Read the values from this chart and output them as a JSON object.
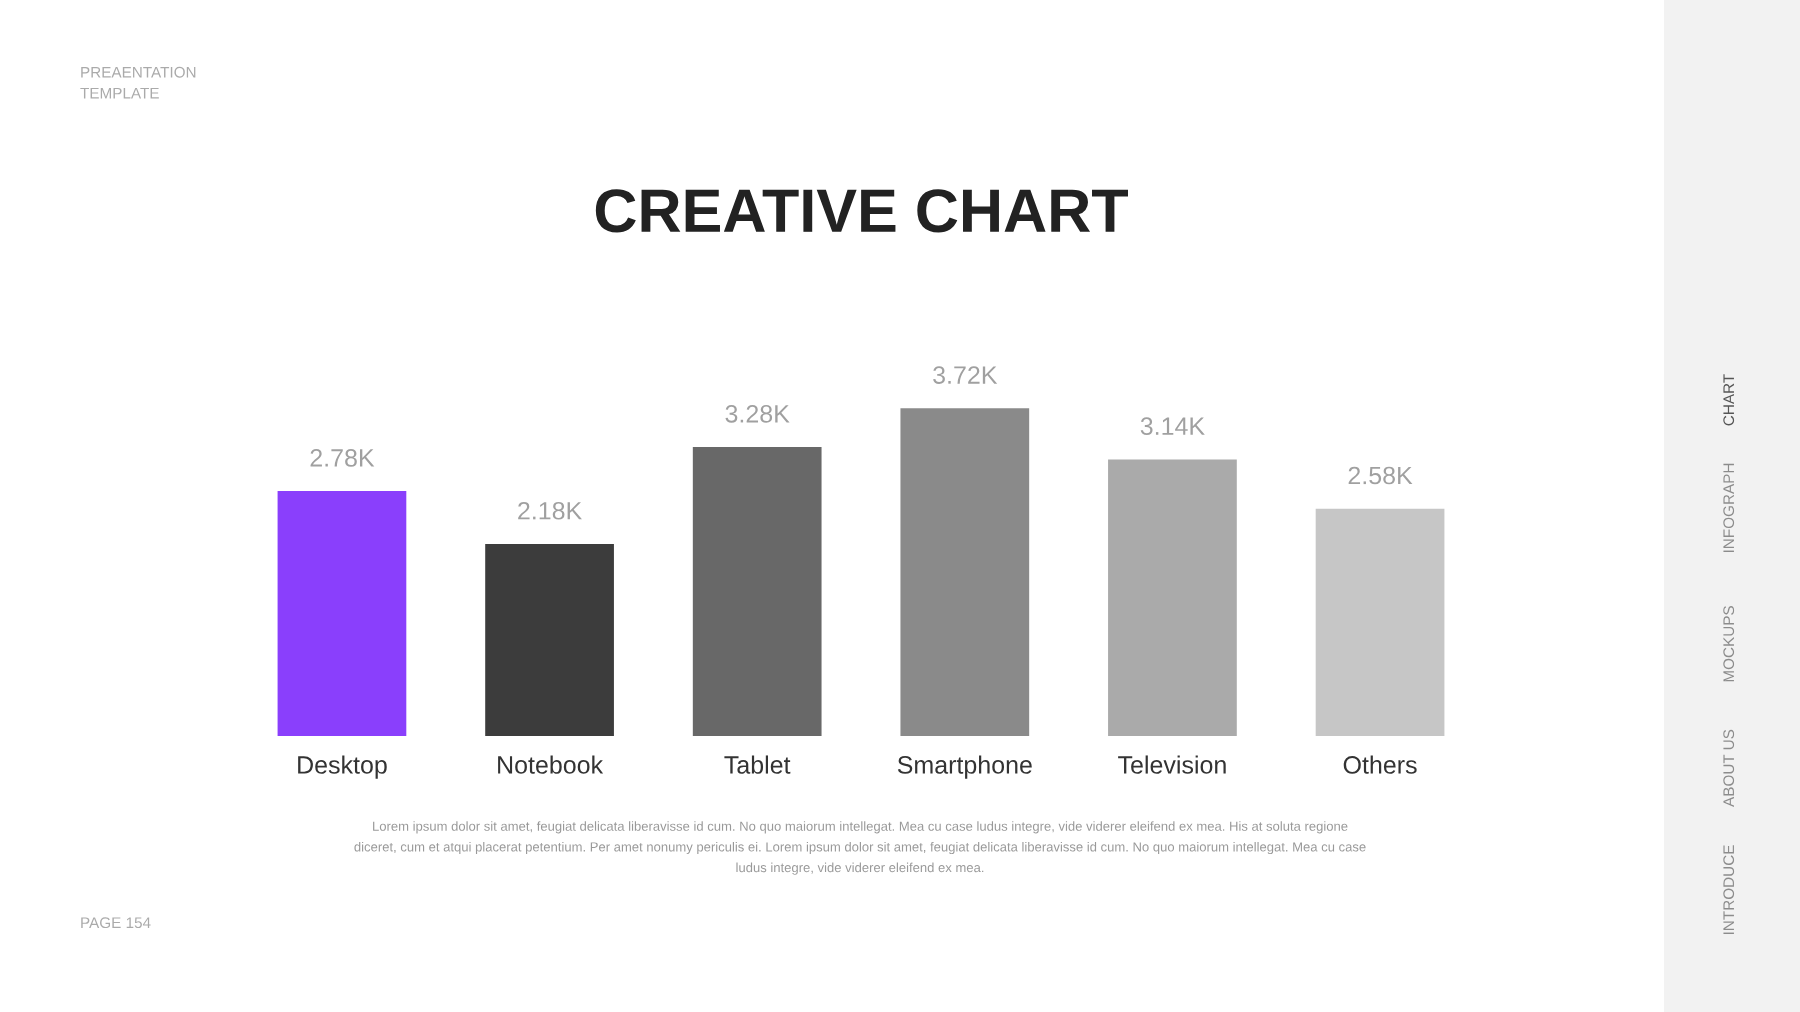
{
  "chart_data": {
    "type": "bar",
    "title": "CREATIVE CHART",
    "categories": [
      "Desktop",
      "Notebook",
      "Tablet",
      "Smartphone",
      "Television",
      "Others"
    ],
    "values": [
      2.78,
      2.18,
      3.28,
      3.72,
      3.14,
      2.58
    ],
    "value_labels": [
      "2.78K",
      "2.18K",
      "3.28K",
      "3.72K",
      "3.14K",
      "2.58K"
    ],
    "colors": [
      "#8a3ffc",
      "#3c3c3c",
      "#686868",
      "#8a8a8a",
      "#aaaaaa",
      "#c6c6c6"
    ],
    "grid": false,
    "legend": false,
    "annotations": [
      "PREAENTATION\nTEMPLATE",
      "PAGE 154",
      "Lorem ipsum dolor sit amet, feugiat delicata liberavisse id cum. No quo maiorum intellegat. Mea cu case ludus integre, vide viderer eleifend ex mea. His at soluta regione\ndiceret, cum et atqui placerat petentium. Per amet nonumy periculis ei. Lorem ipsum dolor sit amet, feugiat delicata liberavisse id cum. No quo maiorum intellegat. Mea cu case\nludus integre, vide viderer eleifend ex mea.",
      "CHART",
      "INFOGRAPH",
      "MOCKUPS",
      "ABOUT US",
      "INTRODUCE"
    ]
  }
}
